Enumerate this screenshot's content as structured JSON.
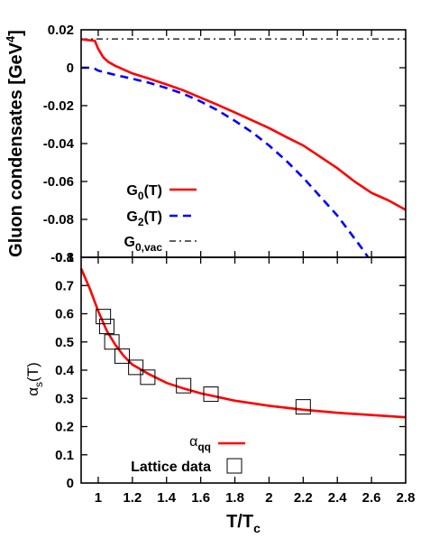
{
  "chart_data": [
    {
      "type": "line",
      "ylabel_main": "Gluon condensates [GeV",
      "ylabel_sup": "4",
      "ylabel_close": "]",
      "xlim": [
        0.9,
        2.8
      ],
      "ylim": [
        -0.1,
        0.02
      ],
      "yticks": [
        "0.02",
        "0",
        "-0.02",
        "-0.04",
        "-0.06",
        "-0.08",
        "-0.1"
      ],
      "ytick_values": [
        0.02,
        0,
        -0.02,
        -0.04,
        -0.06,
        -0.08,
        -0.1
      ],
      "legend_position": "bottom-left",
      "series": [
        {
          "name": "G0(T)",
          "label_main": "G",
          "label_sub": "0",
          "label_rest": "(T)",
          "color": "#ff0000",
          "style": "solid",
          "x": [
            0.9,
            0.98,
            1.0,
            1.03,
            1.06,
            1.1,
            1.2,
            1.3,
            1.4,
            1.5,
            1.6,
            1.7,
            1.8,
            1.9,
            2.0,
            2.1,
            2.2,
            2.3,
            2.4,
            2.5,
            2.6,
            2.7,
            2.8
          ],
          "y": [
            0.015,
            0.0142,
            0.01,
            0.0055,
            0.003,
            0.001,
            -0.003,
            -0.0058,
            -0.0088,
            -0.012,
            -0.0158,
            -0.0196,
            -0.0236,
            -0.0277,
            -0.0318,
            -0.0365,
            -0.041,
            -0.047,
            -0.053,
            -0.06,
            -0.066,
            -0.07,
            -0.075
          ]
        },
        {
          "name": "G2(T)",
          "label_main": "G",
          "label_sub": "2",
          "label_rest": "(T)",
          "color": "#0000ff",
          "style": "dashed",
          "x": [
            0.9,
            0.97,
            1.0,
            1.1,
            1.2,
            1.3,
            1.4,
            1.5,
            1.6,
            1.7,
            1.8,
            1.9,
            2.0,
            2.1,
            2.2,
            2.3,
            2.4,
            2.5,
            2.55,
            2.58
          ],
          "y": [
            0.0,
            0.0,
            -0.0015,
            -0.0038,
            -0.0058,
            -0.008,
            -0.0107,
            -0.0138,
            -0.0178,
            -0.0225,
            -0.028,
            -0.034,
            -0.041,
            -0.049,
            -0.058,
            -0.068,
            -0.078,
            -0.09,
            -0.096,
            -0.1
          ]
        },
        {
          "name": "G0,vac",
          "label_main": "G",
          "label_sub": "0,vac",
          "label_rest": "",
          "color": "#000000",
          "style": "dashdot",
          "x": [
            0.9,
            2.8
          ],
          "y": [
            0.0152,
            0.0152
          ]
        }
      ]
    },
    {
      "type": "line",
      "xlabel_main": "T/T",
      "xlabel_sub": "c",
      "ylabel_main": "α",
      "ylabel_sub": "s",
      "ylabel_rest": "(T)",
      "xlim": [
        0.9,
        2.8
      ],
      "ylim": [
        0,
        0.8
      ],
      "xticks": [
        "1",
        "1.2",
        "1.4",
        "1.6",
        "1.8",
        "2",
        "2.2",
        "2.4",
        "2.6",
        "2.8"
      ],
      "xtick_values": [
        1.0,
        1.2,
        1.4,
        1.6,
        1.8,
        2.0,
        2.2,
        2.4,
        2.6,
        2.8
      ],
      "yticks": [
        "0.8",
        "0.7",
        "0.6",
        "0.5",
        "0.4",
        "0.3",
        "0.2",
        "0.1",
        "0"
      ],
      "ytick_values": [
        0.8,
        0.7,
        0.6,
        0.5,
        0.4,
        0.3,
        0.2,
        0.1,
        0.0
      ],
      "legend_position": "bottom-center",
      "series": [
        {
          "name": "αqq",
          "label_main": "α",
          "label_sub": "qq",
          "color": "#ff0000",
          "style": "solid",
          "x": [
            0.9,
            0.95,
            1.0,
            1.05,
            1.1,
            1.15,
            1.2,
            1.3,
            1.4,
            1.5,
            1.6,
            1.8,
            2.0,
            2.2,
            2.4,
            2.6,
            2.8
          ],
          "y": [
            0.76,
            0.69,
            0.61,
            0.54,
            0.49,
            0.45,
            0.42,
            0.385,
            0.355,
            0.335,
            0.318,
            0.292,
            0.274,
            0.26,
            0.249,
            0.241,
            0.233
          ]
        },
        {
          "name": "Lattice data",
          "color": "#000000",
          "marker": "open-square",
          "x": [
            1.03,
            1.05,
            1.08,
            1.14,
            1.22,
            1.29,
            1.5,
            1.66,
            2.2
          ],
          "y": [
            0.59,
            0.555,
            0.5,
            0.45,
            0.41,
            0.375,
            0.345,
            0.315,
            0.27
          ]
        }
      ]
    }
  ]
}
